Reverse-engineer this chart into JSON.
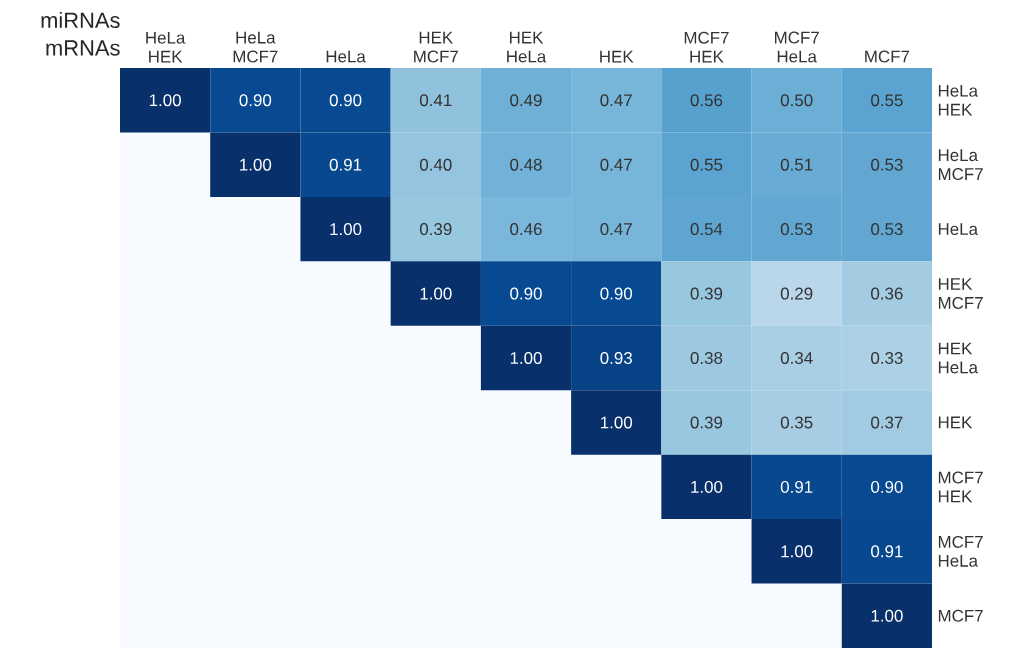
{
  "chart_data": {
    "type": "heatmap",
    "xlabel": "miRNAs",
    "ylabel": "mRNAs",
    "categories": [
      "HeLa HEK",
      "HeLa MCF7",
      "HeLa",
      "HEK MCF7",
      "HEK HeLa",
      "HEK",
      "MCF7 HEK",
      "MCF7 HeLa",
      "MCF7"
    ],
    "y_categories": [
      "HeLa HEK",
      "HeLa MCF7",
      "HeLa",
      "HEK MCF7",
      "HEK HeLa",
      "HEK",
      "MCF7 HEK",
      "MCF7 HeLa",
      "MCF7"
    ],
    "cells": [
      [
        1.0,
        0.9,
        0.9,
        0.41,
        0.49,
        0.47,
        0.56,
        0.5,
        0.55
      ],
      [
        null,
        1.0,
        0.91,
        0.4,
        0.48,
        0.47,
        0.55,
        0.51,
        0.53
      ],
      [
        null,
        null,
        1.0,
        0.39,
        0.46,
        0.47,
        0.54,
        0.53,
        0.53
      ],
      [
        null,
        null,
        null,
        1.0,
        0.9,
        0.9,
        0.39,
        0.29,
        0.36
      ],
      [
        null,
        null,
        null,
        null,
        1.0,
        0.93,
        0.38,
        0.34,
        0.33
      ],
      [
        null,
        null,
        null,
        null,
        null,
        1.0,
        0.39,
        0.35,
        0.37
      ],
      [
        null,
        null,
        null,
        null,
        null,
        null,
        1.0,
        0.91,
        0.9
      ],
      [
        null,
        null,
        null,
        null,
        null,
        null,
        null,
        1.0,
        0.91
      ],
      [
        null,
        null,
        null,
        null,
        null,
        null,
        null,
        null,
        1.0
      ]
    ],
    "cell_labels": [
      [
        "1.00",
        "0.90",
        "0.90",
        "0.41",
        "0.49",
        "0.47",
        "0.56",
        "0.50",
        "0.55"
      ],
      [
        null,
        "1.00",
        "0.91",
        "0.40",
        "0.48",
        "0.47",
        "0.55",
        "0.51",
        "0.53"
      ],
      [
        null,
        null,
        "1.00",
        "0.39",
        "0.46",
        "0.47",
        "0.54",
        "0.53",
        "0.53"
      ],
      [
        null,
        null,
        null,
        "1.00",
        "0.90",
        "0.90",
        "0.39",
        "0.29",
        "0.36"
      ],
      [
        null,
        null,
        null,
        null,
        "1.00",
        "0.93",
        "0.38",
        "0.34",
        "0.33"
      ],
      [
        null,
        null,
        null,
        null,
        null,
        "1.00",
        "0.39",
        "0.35",
        "0.37"
      ],
      [
        null,
        null,
        null,
        null,
        null,
        null,
        "1.00",
        "0.91",
        "0.90"
      ],
      [
        null,
        null,
        null,
        null,
        null,
        null,
        null,
        "1.00",
        "0.91"
      ],
      [
        null,
        null,
        null,
        null,
        null,
        null,
        null,
        null,
        "1.00"
      ]
    ]
  }
}
